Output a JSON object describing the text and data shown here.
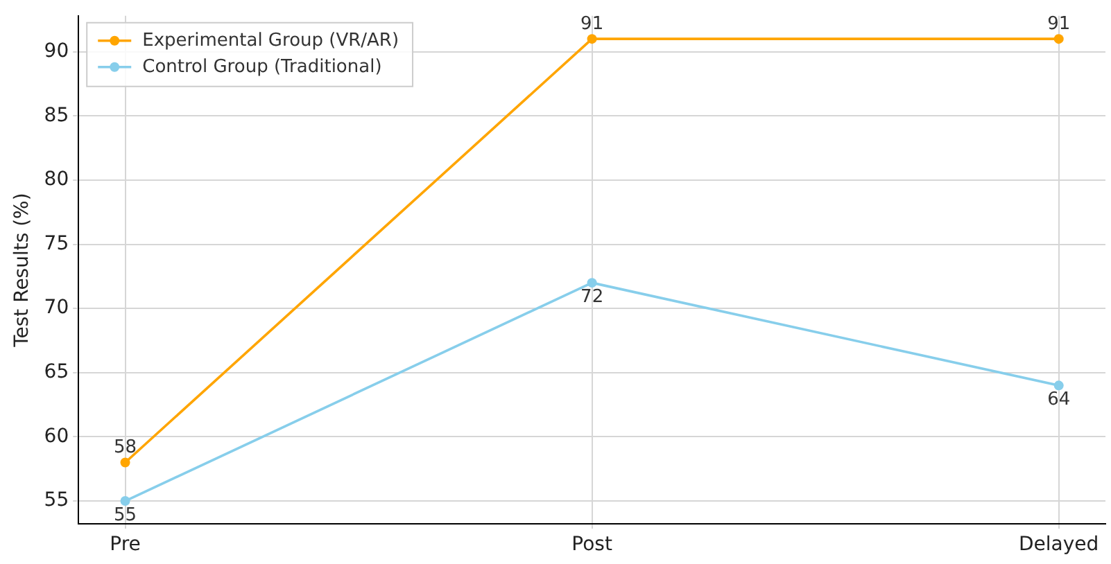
{
  "chart_data": {
    "type": "line",
    "ylabel": "Test Results (%)",
    "categories": [
      "Pre",
      "Post",
      "Delayed"
    ],
    "series": [
      {
        "name": "Experimental Group (VR/AR)",
        "color": "#ffa500",
        "values": [
          58,
          91,
          91
        ]
      },
      {
        "name": "Control Group (Traditional)",
        "color": "#87ceeb",
        "values": [
          55,
          72,
          64
        ]
      }
    ],
    "ylim": [
      53.2,
      92.8
    ],
    "yticks": [
      55,
      60,
      65,
      70,
      75,
      80,
      85,
      90
    ],
    "grid": true,
    "legend": "top left",
    "marker": "circle",
    "line_style": "solid",
    "data_labels": true
  }
}
